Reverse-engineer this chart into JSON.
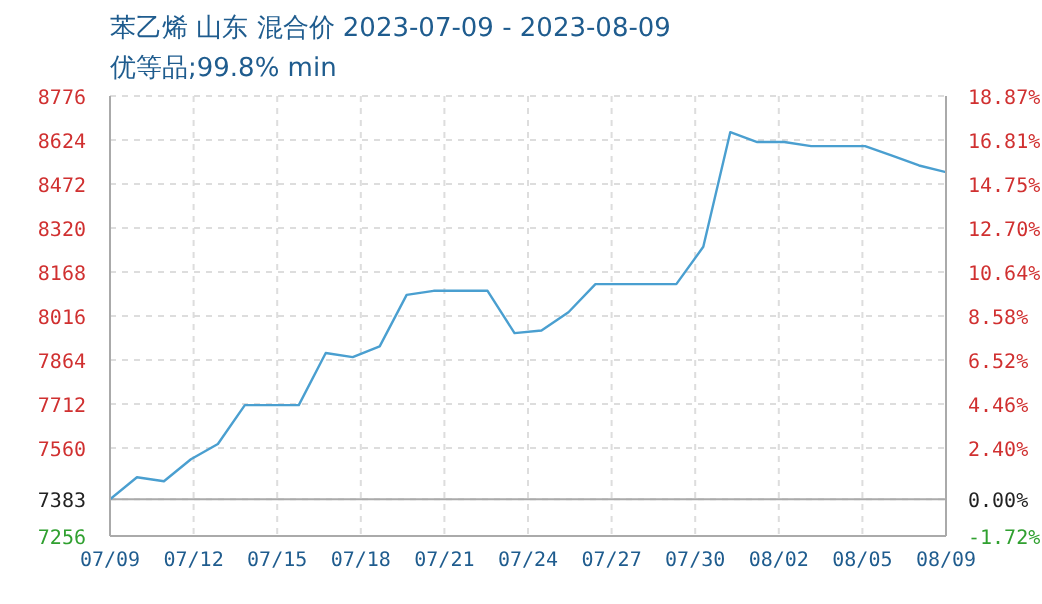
{
  "chart_data": {
    "type": "line",
    "title": "苯乙烯 山东 混合价 2023-07-09 - 2023-08-09",
    "subtitle": "优等品;99.8% min",
    "x": [
      "2023-07-09",
      "2023-07-10",
      "2023-07-11",
      "2023-07-12",
      "2023-07-13",
      "2023-07-14",
      "2023-07-15",
      "2023-07-16",
      "2023-07-17",
      "2023-07-18",
      "2023-07-19",
      "2023-07-20",
      "2023-07-21",
      "2023-07-22",
      "2023-07-23",
      "2023-07-24",
      "2023-07-25",
      "2023-07-26",
      "2023-07-27",
      "2023-07-28",
      "2023-07-29",
      "2023-07-30",
      "2023-07-31",
      "2023-08-01",
      "2023-08-02",
      "2023-08-03",
      "2023-08-04",
      "2023-08-05",
      "2023-08-06",
      "2023-08-07",
      "2023-08-08",
      "2023-08-09"
    ],
    "series": [
      {
        "color": "#4a9fd0",
        "values": [
          7383,
          7459,
          7445,
          7521,
          7574,
          7708,
          7708,
          7708,
          7888,
          7874,
          7911,
          8089,
          8103,
          8103,
          8103,
          7957,
          7966,
          8029,
          8126,
          8126,
          8126,
          8126,
          8255,
          8651,
          8617,
          8617,
          8603,
          8603,
          8603,
          8570,
          8536,
          8513
        ]
      }
    ],
    "xlim": [
      "2023-07-09",
      "2023-08-09"
    ],
    "xticks": [
      {
        "value": "2023-07-09",
        "label": "07/09"
      },
      {
        "value": "2023-07-12T02:24",
        "label": "07/12"
      },
      {
        "value": "2023-07-15T04:48",
        "label": "07/15"
      },
      {
        "value": "2023-07-18T07:12",
        "label": "07/18"
      },
      {
        "value": "2023-07-21T09:36",
        "label": "07/21"
      },
      {
        "value": "2023-07-24T12:00",
        "label": "07/24"
      },
      {
        "value": "2023-07-27T14:24",
        "label": "07/27"
      },
      {
        "value": "2023-07-30T16:48",
        "label": "07/30"
      },
      {
        "value": "2023-08-02T19:12",
        "label": "08/02"
      },
      {
        "value": "2023-08-05T21:36",
        "label": "08/05"
      },
      {
        "value": "2023-08-09",
        "label": "08/09"
      }
    ],
    "ylim": [
      7256,
      8776
    ],
    "yticks": [
      7256,
      7383,
      7560,
      7712,
      7864,
      8016,
      8168,
      8320,
      8472,
      8624,
      8776
    ],
    "y2lim": [
      -1.72,
      18.87
    ],
    "y2ticks": [
      {
        "value": -1.72,
        "label": "-1.72%"
      },
      {
        "value": 0,
        "label": "0.00%"
      },
      {
        "value": 2.4,
        "label": "2.40%"
      },
      {
        "value": 4.46,
        "label": "4.46%"
      },
      {
        "value": 6.52,
        "label": "6.52%"
      },
      {
        "value": 8.58,
        "label": "8.58%"
      },
      {
        "value": 10.64,
        "label": "10.64%"
      },
      {
        "value": 12.7,
        "label": "12.70%"
      },
      {
        "value": 14.75,
        "label": "14.75%"
      },
      {
        "value": 16.81,
        "label": "16.81%"
      },
      {
        "value": 18.87,
        "label": "18.87%"
      }
    ],
    "ref_lines": [
      {
        "axis": "y2",
        "value": 0,
        "color": "#aaaaaa"
      }
    ],
    "grid": true,
    "legend": false,
    "marker": "none",
    "line_style": "solid"
  }
}
